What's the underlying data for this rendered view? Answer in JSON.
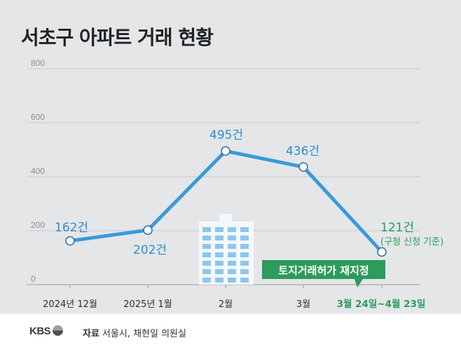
{
  "title": "서초구 아파트 거래 현황",
  "chart_data": {
    "type": "line",
    "title": "서초구 아파트 거래 현황",
    "categories": [
      "2024년 12월",
      "2025년 1월",
      "2월",
      "3월",
      "3월 24일~4월 23일"
    ],
    "values": [
      162,
      202,
      495,
      436,
      121
    ],
    "value_labels": [
      "162건",
      "202건",
      "495건",
      "436건",
      "121건"
    ],
    "last_point_note": "(구청 신청 기준)",
    "y_ticks": [
      0,
      200,
      400,
      600,
      800
    ],
    "ylim": [
      0,
      800
    ],
    "annotation": "토지거래허가 재지정",
    "colors": {
      "line": "#3a9ad9",
      "label": "#2e8ccf",
      "highlight": "#2a9b5a",
      "annotation_bg": "#2e9a5b"
    }
  },
  "footer": {
    "logo": "KBS",
    "source_label": "자료",
    "source_text": "서울시, 채현일 의원실"
  }
}
